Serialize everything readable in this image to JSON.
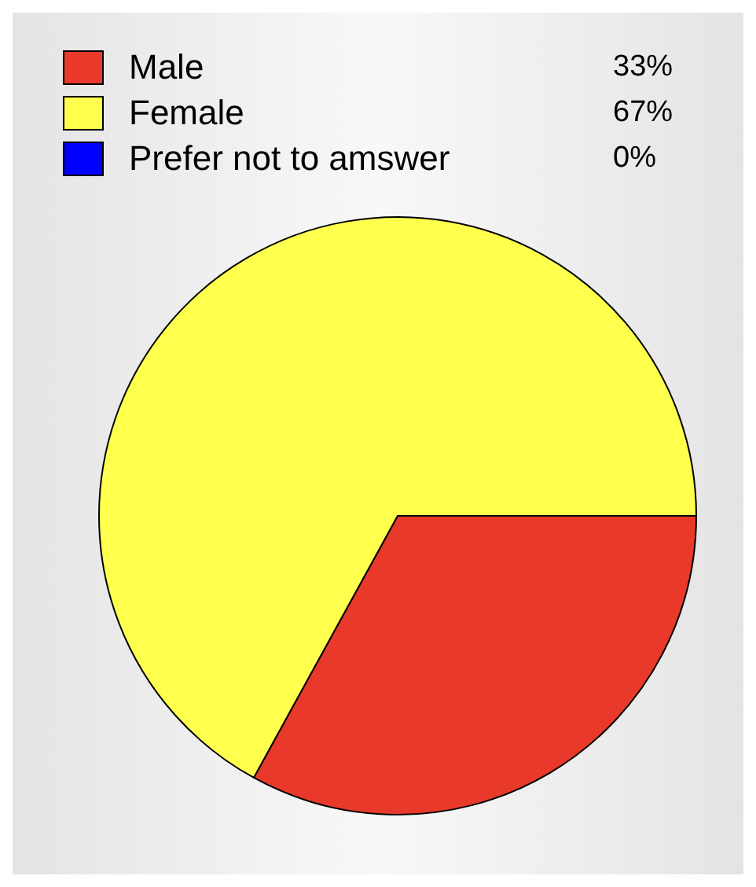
{
  "chart_data": {
    "type": "pie",
    "categories": [
      "Male",
      "Female",
      "Prefer not to amswer"
    ],
    "values": [
      33,
      67,
      0
    ],
    "colors": [
      "#e8392a",
      "#ffff4d",
      "#0000ff"
    ],
    "value_labels": [
      "33%",
      "67%",
      "0%"
    ],
    "legend": "top left"
  }
}
